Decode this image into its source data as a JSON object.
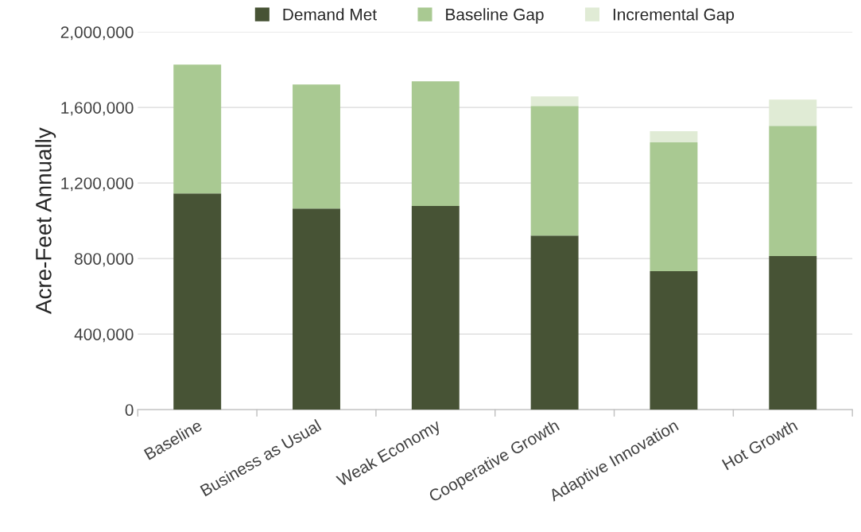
{
  "chart_data": {
    "type": "bar",
    "stacked": true,
    "ylabel": "Acre-Feet Annually",
    "categories": [
      "Baseline",
      "Business as Usual",
      "Weak Economy",
      "Cooperative Growth",
      "Adaptive Innovation",
      "Hot Growth"
    ],
    "series": [
      {
        "name": "Demand Met",
        "color": "#475335",
        "values": [
          1145000,
          1065000,
          1078000,
          922000,
          733000,
          813000
        ]
      },
      {
        "name": "Baseline Gap",
        "color": "#a9c992",
        "values": [
          682000,
          657000,
          661000,
          686000,
          682000,
          690000
        ]
      },
      {
        "name": "Incremental Gap",
        "color": "#e0ebd5",
        "values": [
          null,
          null,
          null,
          51000,
          59000,
          139000
        ]
      }
    ],
    "ylim": [
      0,
      2000000
    ],
    "yticks": [
      0,
      {
        "value": 400000,
        "label": "400,000"
      },
      {
        "value": 800000,
        "label": "800,000"
      },
      {
        "value": 1200000,
        "label": "1,200,000"
      },
      {
        "value": 1600000,
        "label": "1,600,000"
      },
      {
        "value": 2000000,
        "label": "2,000,000"
      }
    ],
    "grid": "y",
    "legend": "top"
  }
}
